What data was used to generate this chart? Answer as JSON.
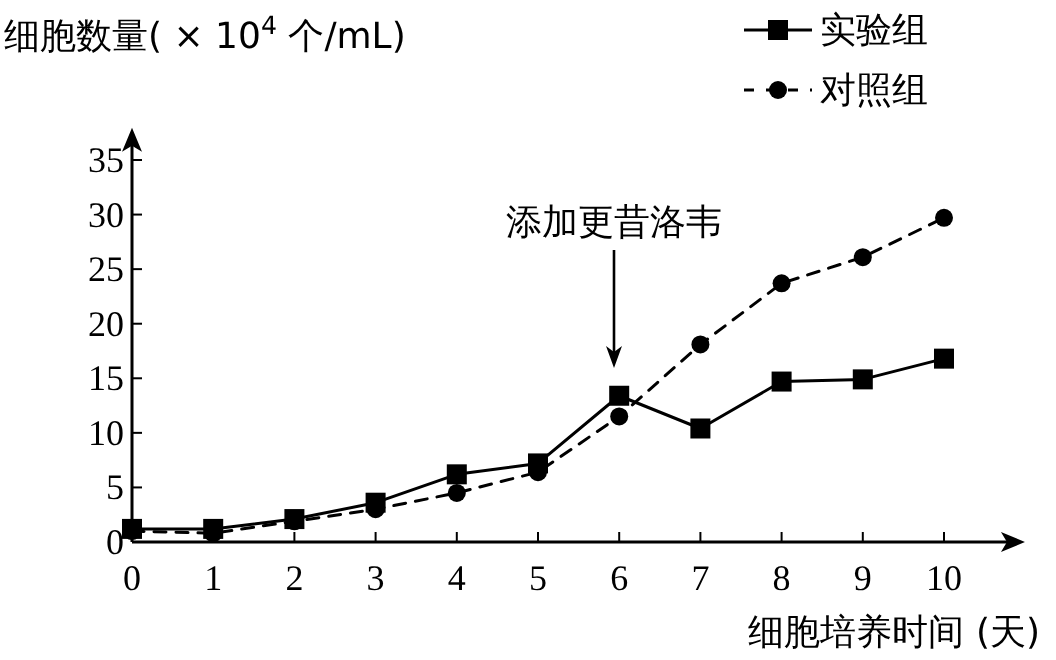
{
  "chart_data": {
    "type": "line",
    "ylabel": "细胞数量( × 10$^{4}$ 个/mL)",
    "xlabel": "细胞培养时间 (天)",
    "x": [
      0,
      1,
      2,
      3,
      4,
      5,
      6,
      7,
      8,
      9,
      10
    ],
    "series": [
      {
        "name": "实验组",
        "color": "#000000",
        "marker": "square",
        "line_style": "solid",
        "values": [
          1.2,
          1.2,
          2.1,
          3.6,
          6.2,
          7.2,
          13.4,
          10.4,
          14.7,
          14.9,
          16.8
        ]
      },
      {
        "name": "对照组",
        "color": "#000000",
        "marker": "circle",
        "line_style": "dashed",
        "values": [
          1.0,
          0.8,
          1.9,
          3.0,
          4.5,
          6.4,
          11.5,
          18.1,
          23.7,
          26.1,
          29.7
        ]
      }
    ],
    "xlim": [
      0,
      10.8
    ],
    "ylim": [
      0,
      36.5
    ],
    "xticks": [
      0,
      1,
      2,
      3,
      4,
      5,
      6,
      7,
      8,
      9,
      10
    ],
    "yticks": [
      0,
      5,
      10,
      15,
      20,
      25,
      30,
      35
    ],
    "grid": false,
    "legend": "top right",
    "annotations": [
      "添加更昔洛韦"
    ]
  }
}
